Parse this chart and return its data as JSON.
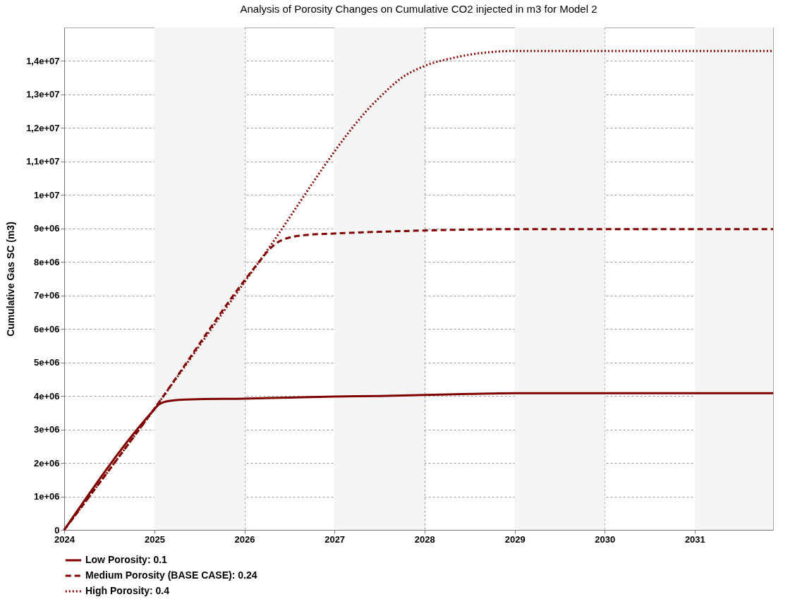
{
  "chart_data": {
    "type": "line",
    "title": "Analysis of Porosity Changes on Cumulative CO2 injected in m3 for Model 2",
    "ylabel": "Cumulative Gas SC (m3)",
    "xlim": [
      "2024-01-01",
      "2031-11-15"
    ],
    "xticks": [
      {
        "value": "2024",
        "label": "2024"
      },
      {
        "value": "2025",
        "label": "2025"
      },
      {
        "value": "2026",
        "label": "2026"
      },
      {
        "value": "2027",
        "label": "2027"
      },
      {
        "value": "2028",
        "label": "2028"
      },
      {
        "value": "2029",
        "label": "2029"
      },
      {
        "value": "2030",
        "label": "2030"
      },
      {
        "value": "2031",
        "label": "2031"
      }
    ],
    "ylim": [
      0,
      15000000
    ],
    "yticks": [
      0,
      {
        "value": 1000000,
        "label": "1e+06"
      },
      {
        "value": 2000000,
        "label": "2e+06"
      },
      {
        "value": 3000000,
        "label": "3e+06"
      },
      {
        "value": 4000000,
        "label": "4e+06"
      },
      {
        "value": 5000000,
        "label": "5e+06"
      },
      {
        "value": 6000000,
        "label": "6e+06"
      },
      {
        "value": 7000000,
        "label": "7e+06"
      },
      {
        "value": 8000000,
        "label": "8e+06"
      },
      {
        "value": 9000000,
        "label": "9e+06"
      },
      {
        "value": 10000000,
        "label": "1e+07"
      },
      {
        "value": 11000000,
        "label": "1,1e+07"
      },
      {
        "value": 12000000,
        "label": "1,2e+07"
      },
      {
        "value": 13000000,
        "label": "1,3e+07"
      },
      {
        "value": 14000000,
        "label": "1,4e+07"
      }
    ],
    "grid": true,
    "legend": "bottom",
    "bands": [
      {
        "axis": "x",
        "from": "2025-01-01",
        "to": "2026-01-01",
        "color": "#f5f5f5"
      },
      {
        "axis": "x",
        "from": "2027-01-01",
        "to": "2028-01-01",
        "color": "#f5f5f5"
      },
      {
        "axis": "x",
        "from": "2029-01-01",
        "to": "2030-01-01",
        "color": "#f5f5f5"
      },
      {
        "axis": "x",
        "from": "2031-01-01",
        "to": "2031-11-15",
        "color": "#f5f5f5"
      }
    ],
    "series": [
      {
        "name": "Low Porosity: 0.1",
        "color": "#800000",
        "line_style": "solid",
        "x": [
          "2024-01-01",
          "2024-12-20",
          "2025-01-20",
          "2025-03-01",
          "2025-06-01",
          "2026-01-01",
          "2026-07-01",
          "2027-01-01",
          "2027-07-01",
          "2028-01-01",
          "2028-07-01",
          "2029-01-01",
          "2031-11-15"
        ],
        "values": [
          0,
          3500000,
          3750000,
          3850000,
          3900000,
          3920000,
          3950000,
          3980000,
          4000000,
          4030000,
          4060000,
          4080000,
          4080000
        ]
      },
      {
        "name": " Medium Porosity (BASE CASE): 0.24",
        "color": "#800000",
        "line_style": "dashed",
        "x": [
          "2024-01-01",
          "2024-12-20",
          "2026-03-01",
          "2026-04-15",
          "2026-06-01",
          "2026-09-01",
          "2027-01-01",
          "2027-07-01",
          "2028-01-01",
          "2029-01-01",
          "2031-11-15"
        ],
        "values": [
          0,
          3500000,
          8000000,
          8400000,
          8650000,
          8800000,
          8850000,
          8900000,
          8940000,
          8980000,
          8980000
        ]
      },
      {
        "name": "High Porosity: 0.4",
        "color": "#800000",
        "line_style": "dotted",
        "x": [
          "2024-01-01",
          "2024-12-20",
          "2026-03-01",
          "2027-07-01",
          "2027-10-01",
          "2028-01-01",
          "2028-05-01",
          "2028-09-01",
          "2029-01-01",
          "2031-11-15"
        ],
        "values": [
          0,
          3500000,
          8000000,
          12900000,
          13500000,
          13850000,
          14100000,
          14250000,
          14300000,
          14300000
        ]
      }
    ]
  }
}
